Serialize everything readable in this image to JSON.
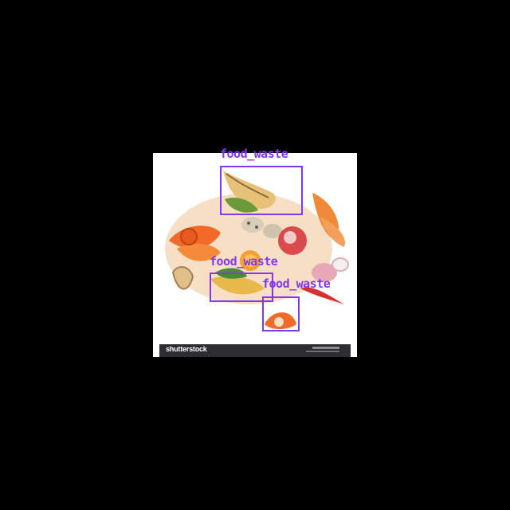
{
  "detections": [
    {
      "label": "food_waste"
    },
    {
      "label": "food_waste"
    },
    {
      "label": "food_waste"
    }
  ],
  "watermark": {
    "brand": "shutterstock"
  },
  "colors": {
    "box": "#8338ec",
    "background": "#000000"
  }
}
